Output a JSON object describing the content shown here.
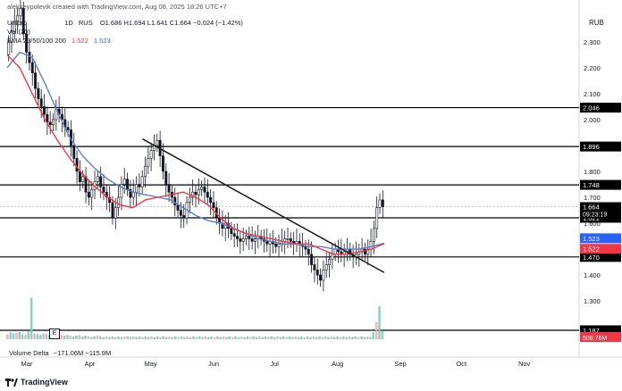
{
  "header": {
    "credit": "alekseypolevik created with TradingView.com, Aug 08, 2025 18:26 UTC+7",
    "symbol_fragment": "Unipro",
    "interval_fragment": "1D",
    "exchange_fragment": "RUS",
    "ohlc": "O1.686  H1.694  L1.641  C1.664  −0.024 (−1.42%)",
    "vol_label": "Vol (20)",
    "ema_label": "EMA 20/50/100 200",
    "ema_value_1": "1.522",
    "ema_value_2": "1.523"
  },
  "currency": "RUB",
  "volume_delta": {
    "label": "Volume Delta",
    "values": "−171.06M  −115.9M",
    "marker": "E"
  },
  "footer": {
    "logo_text": "TradingView"
  },
  "colors": {
    "candle_up": "#131722",
    "candle_down": "#131722",
    "ema_fast": "#f23645",
    "ema_slow": "#5b7fd6",
    "trendline": "#1a1a1a",
    "vol_up": "#79c9b8",
    "vol_down": "#f4a6ab",
    "vol_badge_bg": "#f23645",
    "ema_slow_badge_bg": "#2962ff",
    "ema_fast_badge_bg": "#f23645",
    "price_badge_bg": "#000000"
  },
  "chart_data": {
    "type": "candlestick",
    "ylim": [
      1.18,
      2.42
    ],
    "y_ticks": [
      "2.300",
      "2.200",
      "2.100",
      "2.000",
      "1.900",
      "1.800",
      "1.700",
      "1.600",
      "1.500",
      "1.400",
      "1.300"
    ],
    "x_ticks": [
      "Mar",
      "Apr",
      "May",
      "Jun",
      "Jul",
      "Aug",
      "Sep",
      "Oct",
      "Nov"
    ],
    "horizontal_levels": [
      {
        "label": "2.046",
        "value": 2.046
      },
      {
        "label": "1.896",
        "value": 1.896
      },
      {
        "label": "1.748",
        "value": 1.748
      },
      {
        "label": "1.621",
        "value": 1.621
      },
      {
        "label": "1.470",
        "value": 1.47
      },
      {
        "label": "1.187",
        "value": 1.187
      }
    ],
    "price_badge": {
      "value": "1.664",
      "countdown": "09:23:19"
    },
    "ema_badges": [
      {
        "label": "1.523",
        "value": 1.523
      },
      {
        "label": "1.522",
        "value": 1.522
      }
    ],
    "volume_badge": "508.76M",
    "trendline": {
      "start": {
        "date": "2025-04-27",
        "price": 1.925
      },
      "end": {
        "date": "2025-08-24",
        "price": 1.41
      }
    },
    "candle_closes": [
      2.3,
      2.34,
      2.38,
      2.4,
      2.43,
      2.33,
      2.26,
      2.22,
      2.18,
      2.12,
      2.08,
      2.05,
      2.02,
      1.99,
      1.98,
      2.0,
      2.04,
      2.02,
      2.0,
      1.97,
      1.96,
      1.9,
      1.85,
      1.8,
      1.76,
      1.78,
      1.72,
      1.7,
      1.73,
      1.76,
      1.78,
      1.74,
      1.72,
      1.7,
      1.68,
      1.62,
      1.66,
      1.7,
      1.75,
      1.77,
      1.73,
      1.7,
      1.72,
      1.75,
      1.74,
      1.78,
      1.82,
      1.85,
      1.88,
      1.9,
      1.92,
      1.86,
      1.8,
      1.75,
      1.72,
      1.7,
      1.67,
      1.65,
      1.63,
      1.62,
      1.68,
      1.7,
      1.72,
      1.71,
      1.73,
      1.74,
      1.72,
      1.7,
      1.68,
      1.66,
      1.62,
      1.6,
      1.58,
      1.6,
      1.58,
      1.56,
      1.55,
      1.54,
      1.53,
      1.54,
      1.55,
      1.54,
      1.53,
      1.54,
      1.55,
      1.54,
      1.53,
      1.52,
      1.53,
      1.52,
      1.51,
      1.52,
      1.53,
      1.54,
      1.54,
      1.53,
      1.52,
      1.53,
      1.52,
      1.51,
      1.5,
      1.48,
      1.44,
      1.42,
      1.4,
      1.38,
      1.42,
      1.44,
      1.46,
      1.48,
      1.5,
      1.49,
      1.48,
      1.49,
      1.5,
      1.48,
      1.47,
      1.48,
      1.49,
      1.5,
      1.48,
      1.5,
      1.53,
      1.58,
      1.66,
      1.69,
      1.664
    ],
    "ema_fast_series": [
      2.25,
      2.2,
      2.1,
      2.0,
      1.92,
      1.85,
      1.79,
      1.74,
      1.7,
      1.67,
      1.66,
      1.69,
      1.7,
      1.71,
      1.72,
      1.7,
      1.67,
      1.62,
      1.58,
      1.56,
      1.55,
      1.54,
      1.53,
      1.52,
      1.52,
      1.5,
      1.48,
      1.48,
      1.49,
      1.5,
      1.522
    ],
    "ema_slow_series": [
      2.2,
      2.26,
      2.24,
      2.14,
      2.03,
      1.93,
      1.86,
      1.81,
      1.77,
      1.74,
      1.72,
      1.71,
      1.7,
      1.69,
      1.66,
      1.63,
      1.61,
      1.6,
      1.58,
      1.56,
      1.54,
      1.53,
      1.52,
      1.52,
      1.51,
      1.51,
      1.5,
      1.5,
      1.5,
      1.51,
      1.523
    ],
    "volume_relative": [
      0.35,
      0.5,
      0.4,
      0.45,
      0.5,
      0.35,
      0.3,
      0.55,
      2.9,
      0.4,
      0.35,
      0.3,
      0.4,
      0.35,
      0.3,
      0.25,
      0.3,
      0.35,
      0.3,
      0.25,
      0.3,
      0.25,
      0.2,
      0.25,
      0.3,
      0.2,
      0.25,
      0.2,
      0.15,
      0.2,
      0.25,
      0.2,
      0.15,
      0.2,
      0.15,
      0.2,
      0.15,
      0.2,
      0.15,
      0.2,
      0.2,
      0.15,
      0.2,
      0.15,
      0.2,
      0.15,
      0.2,
      0.15,
      0.2,
      0.15,
      0.2,
      0.15,
      0.2,
      0.15,
      0.2,
      0.15,
      0.2,
      0.15,
      0.2,
      0.15,
      0.2,
      0.15,
      0.2,
      0.15,
      0.2,
      0.15,
      0.2,
      0.15,
      0.2,
      0.15,
      0.2,
      0.15,
      0.2,
      0.15,
      0.2,
      0.15,
      0.2,
      0.15,
      0.2,
      0.15,
      0.2,
      0.15,
      0.2,
      0.15,
      0.2,
      0.15,
      0.2,
      0.15,
      0.2,
      0.15,
      0.2,
      0.15,
      0.2,
      0.15,
      0.2,
      0.15,
      0.2,
      0.15,
      0.2,
      0.15,
      0.2,
      0.15,
      0.2,
      0.15,
      0.2,
      0.15,
      0.2,
      0.15,
      0.2,
      0.15,
      0.2,
      0.15,
      0.2,
      0.15,
      0.2,
      0.15,
      0.2,
      0.15,
      0.2,
      0.15,
      0.2,
      0.15,
      0.5,
      1.2,
      2.3,
      0.6
    ]
  }
}
